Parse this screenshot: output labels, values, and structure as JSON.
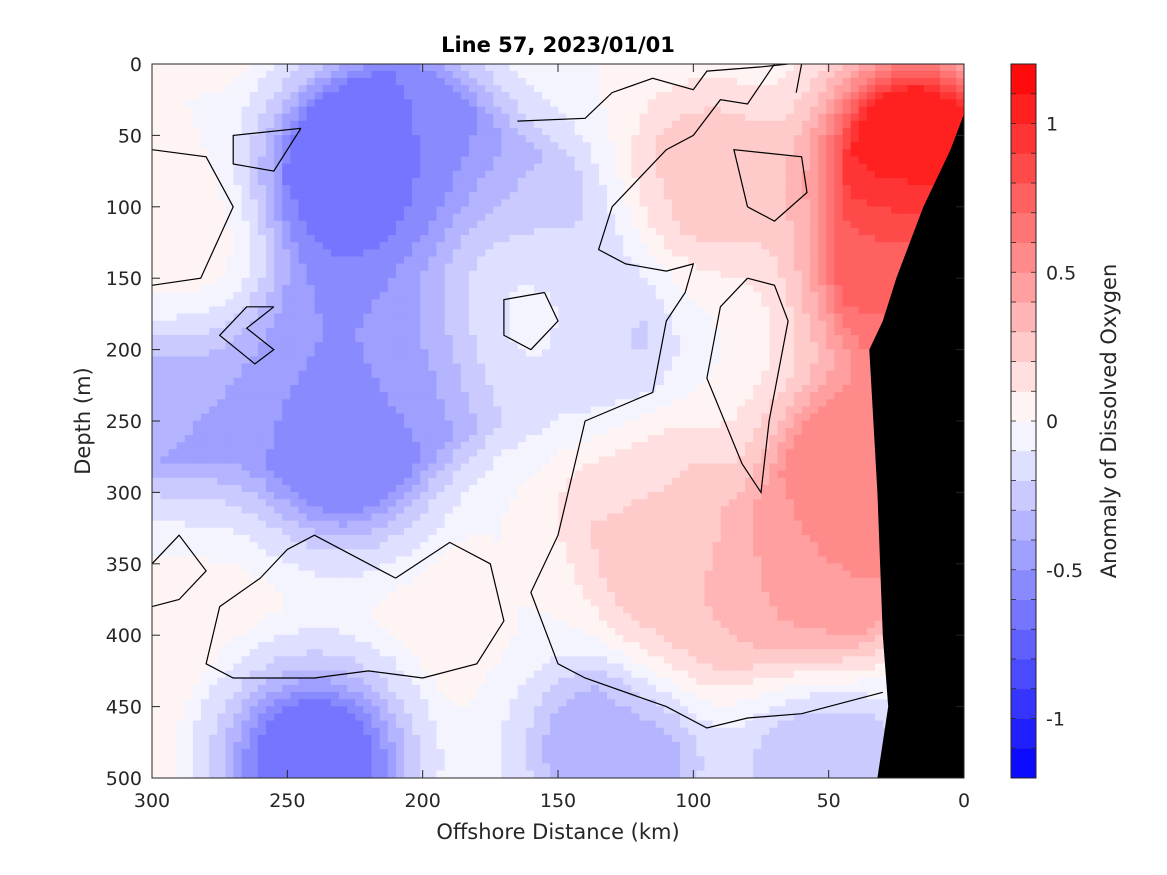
{
  "chart_data": {
    "type": "contour",
    "title": "Line 57, 2023/01/01",
    "xlabel": "Offshore Distance (km)",
    "ylabel": "Depth (m)",
    "colorbar_label": "Anomaly of Dissolved Oxygen",
    "x_reversed": true,
    "y_reversed": true,
    "xlim": [
      0,
      300
    ],
    "ylim": [
      0,
      500
    ],
    "clim": [
      -1.2,
      1.2
    ],
    "xticks": [
      300,
      250,
      200,
      150,
      100,
      50,
      0
    ],
    "yticks": [
      0,
      50,
      100,
      150,
      200,
      250,
      300,
      350,
      400,
      450,
      500
    ],
    "cticks": [
      -1,
      -0.5,
      0,
      0.5,
      1
    ],
    "contour_levels": 24,
    "colormap_low": "#0000ff",
    "colormap_mid": "#ffffff",
    "colormap_high": "#ff0000",
    "zero_contour_color": "#000000",
    "land_color": "#000000",
    "anomaly_features": [
      {
        "x": 225,
        "y": 80,
        "value": -0.75
      },
      {
        "x": 205,
        "y": 55,
        "value": -0.55
      },
      {
        "x": 230,
        "y": 200,
        "value": -0.5
      },
      {
        "x": 230,
        "y": 270,
        "value": -0.55
      },
      {
        "x": 195,
        "y": 200,
        "value": -0.5
      },
      {
        "x": 140,
        "y": 200,
        "value": -0.3
      },
      {
        "x": 160,
        "y": 110,
        "value": -0.3
      },
      {
        "x": 290,
        "y": 240,
        "value": -0.4
      },
      {
        "x": 240,
        "y": 490,
        "value": -0.7
      },
      {
        "x": 130,
        "y": 480,
        "value": -0.4
      },
      {
        "x": 50,
        "y": 490,
        "value": -0.3
      },
      {
        "x": 18,
        "y": 60,
        "value": 1.1
      },
      {
        "x": 25,
        "y": 150,
        "value": 0.7
      },
      {
        "x": 40,
        "y": 280,
        "value": 0.55
      },
      {
        "x": 50,
        "y": 360,
        "value": 0.5
      },
      {
        "x": 100,
        "y": 380,
        "value": 0.3
      },
      {
        "x": 120,
        "y": 300,
        "value": 0.2
      },
      {
        "x": 95,
        "y": 80,
        "value": 0.25
      },
      {
        "x": 165,
        "y": 180,
        "value": 0.2
      },
      {
        "x": 290,
        "y": 130,
        "value": 0.1
      }
    ],
    "zero_contours": [
      [
        [
          165,
          40
        ],
        [
          140,
          38
        ],
        [
          130,
          20
        ],
        [
          115,
          10
        ],
        [
          100,
          18
        ],
        [
          95,
          5
        ],
        [
          75,
          2
        ],
        [
          65,
          0
        ]
      ],
      [
        [
          70,
          0
        ],
        [
          80,
          28
        ],
        [
          90,
          25
        ],
        [
          100,
          50
        ],
        [
          110,
          60
        ],
        [
          120,
          80
        ],
        [
          130,
          100
        ],
        [
          135,
          130
        ],
        [
          125,
          140
        ],
        [
          110,
          145
        ],
        [
          100,
          140
        ],
        [
          103,
          160
        ],
        [
          110,
          180
        ],
        [
          115,
          230
        ],
        [
          140,
          250
        ],
        [
          150,
          330
        ],
        [
          160,
          370
        ],
        [
          150,
          420
        ],
        [
          140,
          430
        ],
        [
          110,
          450
        ],
        [
          95,
          465
        ],
        [
          80,
          458
        ],
        [
          60,
          455
        ],
        [
          30,
          440
        ]
      ],
      [
        [
          62,
          20
        ],
        [
          60,
          0
        ]
      ],
      [
        [
          80,
          100
        ],
        [
          85,
          60
        ],
        [
          60,
          65
        ],
        [
          58,
          90
        ],
        [
          70,
          110
        ],
        [
          80,
          100
        ]
      ],
      [
        [
          80,
          150
        ],
        [
          90,
          170
        ],
        [
          95,
          220
        ],
        [
          82,
          280
        ],
        [
          75,
          300
        ],
        [
          72,
          250
        ],
        [
          65,
          180
        ],
        [
          70,
          155
        ],
        [
          80,
          150
        ]
      ],
      [
        [
          155,
          160
        ],
        [
          150,
          180
        ],
        [
          160,
          200
        ],
        [
          170,
          190
        ],
        [
          170,
          165
        ],
        [
          155,
          160
        ]
      ],
      [
        [
          245,
          45
        ],
        [
          270,
          50
        ],
        [
          270,
          70
        ],
        [
          255,
          75
        ],
        [
          245,
          45
        ]
      ],
      [
        [
          300,
          60
        ],
        [
          280,
          65
        ],
        [
          270,
          100
        ],
        [
          282,
          150
        ],
        [
          300,
          155
        ]
      ],
      [
        [
          255,
          170
        ],
        [
          265,
          185
        ],
        [
          255,
          200
        ],
        [
          262,
          210
        ],
        [
          275,
          190
        ],
        [
          265,
          170
        ],
        [
          255,
          170
        ]
      ],
      [
        [
          300,
          350
        ],
        [
          290,
          330
        ],
        [
          280,
          355
        ],
        [
          290,
          375
        ],
        [
          300,
          380
        ]
      ],
      [
        [
          210,
          360
        ],
        [
          240,
          330
        ],
        [
          250,
          340
        ],
        [
          260,
          360
        ],
        [
          275,
          380
        ],
        [
          280,
          420
        ],
        [
          270,
          430
        ],
        [
          240,
          430
        ],
        [
          220,
          425
        ],
        [
          200,
          430
        ],
        [
          180,
          420
        ],
        [
          170,
          390
        ],
        [
          175,
          350
        ],
        [
          190,
          335
        ],
        [
          210,
          360
        ]
      ]
    ],
    "land_polygon": [
      [
        0,
        35
      ],
      [
        5,
        60
      ],
      [
        15,
        100
      ],
      [
        25,
        150
      ],
      [
        30,
        180
      ],
      [
        35,
        200
      ],
      [
        32,
        300
      ],
      [
        30,
        400
      ],
      [
        28,
        450
      ],
      [
        32,
        500
      ],
      [
        0,
        500
      ]
    ]
  }
}
